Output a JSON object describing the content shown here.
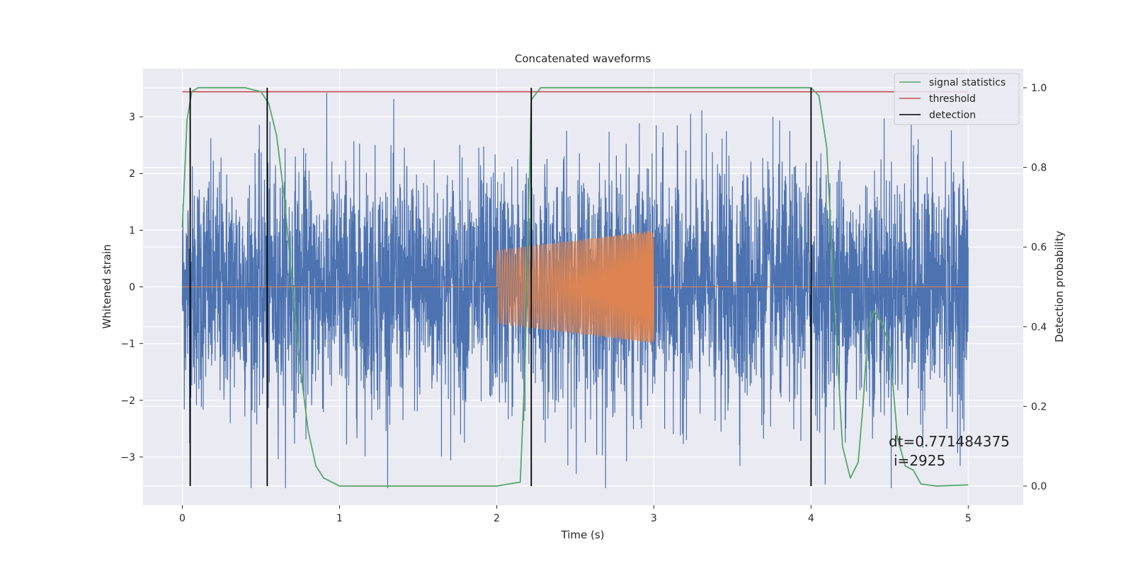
{
  "chart_data": {
    "type": "line",
    "title": "Concatenated waveforms",
    "xlabel": "Time (s)",
    "ylabel": "Whitened strain",
    "y2label": "Detection probability",
    "xlim": [
      -0.25,
      5.35
    ],
    "ylim": [
      -3.85,
      3.85
    ],
    "y2lim": [
      -0.048,
      1.048
    ],
    "xticks": [
      "0",
      "1",
      "2",
      "3",
      "4",
      "5"
    ],
    "yticks": [
      "3",
      "2",
      "1",
      "0",
      "−1",
      "−2",
      "−3"
    ],
    "y2ticks": [
      "1.0",
      "0.8",
      "0.6",
      "0.4",
      "0.2",
      "0.0"
    ],
    "grid": true,
    "legend_position": "top-right",
    "legend": [
      "signal statistics",
      "threshold",
      "detection"
    ],
    "series": [
      {
        "name": "",
        "kind": "noise",
        "axis": "left",
        "color": "#4c72b0",
        "x_range": [
          0,
          5
        ],
        "std": 1.0,
        "peak_max": 3.42,
        "peak_min": -3.55
      },
      {
        "name": "",
        "kind": "chirp",
        "axis": "left",
        "color": "#dd8452",
        "x_range": [
          0,
          5
        ],
        "active_range": [
          2,
          3
        ],
        "amplitude_start": 0.65,
        "amplitude_end": 1.0
      },
      {
        "name": "signal statistics",
        "axis": "right",
        "color": "#55a868",
        "x": [
          0.0,
          0.03,
          0.06,
          0.1,
          0.2,
          0.4,
          0.5,
          0.55,
          0.6,
          0.65,
          0.7,
          0.75,
          0.8,
          0.85,
          0.9,
          1.0,
          1.5,
          2.0,
          2.15,
          2.18,
          2.22,
          2.28,
          2.4,
          3.0,
          3.5,
          4.0,
          4.05,
          4.1,
          4.15,
          4.2,
          4.25,
          4.3,
          4.33,
          4.36,
          4.4,
          4.45,
          4.5,
          4.55,
          4.6,
          4.65,
          4.7,
          4.8,
          5.0
        ],
        "y": [
          0.65,
          0.92,
          0.99,
          1.0,
          1.0,
          1.0,
          0.99,
          0.96,
          0.88,
          0.72,
          0.5,
          0.3,
          0.14,
          0.05,
          0.02,
          0.0,
          0.0,
          0.0,
          0.01,
          0.3,
          0.97,
          1.0,
          1.0,
          1.0,
          1.0,
          1.0,
          0.98,
          0.85,
          0.45,
          0.1,
          0.02,
          0.06,
          0.2,
          0.38,
          0.44,
          0.41,
          0.35,
          0.12,
          0.05,
          0.04,
          0.005,
          0.0,
          0.003
        ]
      },
      {
        "name": "threshold",
        "axis": "right",
        "color": "#c44e52",
        "x": [
          0,
          5
        ],
        "y": [
          0.99,
          0.99
        ]
      },
      {
        "name": "detection",
        "axis": "right",
        "color": "#000000",
        "vlines_x": [
          0.05,
          0.54,
          2.22,
          4.0
        ],
        "vlines_y": [
          0.0,
          1.0
        ]
      }
    ],
    "annotations": [
      "dt=0.771484375",
      "i=2925"
    ]
  }
}
